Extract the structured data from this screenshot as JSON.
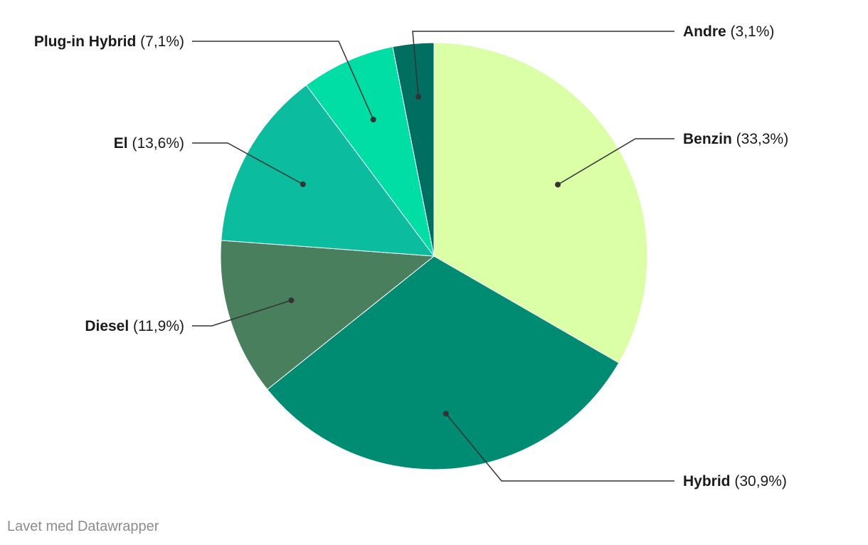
{
  "chart_data": {
    "type": "pie",
    "slices": [
      {
        "label": "Benzin",
        "value": 33.3,
        "value_text": "(33,3%)",
        "color": "#dbffa6"
      },
      {
        "label": "Hybrid",
        "value": 30.9,
        "value_text": "(30,9%)",
        "color": "#008c72"
      },
      {
        "label": "Diesel",
        "value": 11.9,
        "value_text": "(11,9%)",
        "color": "#4a7f5e"
      },
      {
        "label": "El",
        "value": 13.6,
        "value_text": "(13,6%)",
        "color": "#0cbc9e"
      },
      {
        "label": "Plug-in Hybrid",
        "value": 7.1,
        "value_text": "(7,1%)",
        "color": "#00dea6"
      },
      {
        "label": "Andre",
        "value": 3.1,
        "value_text": "(3,1%)",
        "color": "#006f62"
      }
    ],
    "start_angle": "12 o'clock",
    "direction": "clockwise"
  },
  "footer": {
    "credit": "Lavet med Datawrapper"
  }
}
